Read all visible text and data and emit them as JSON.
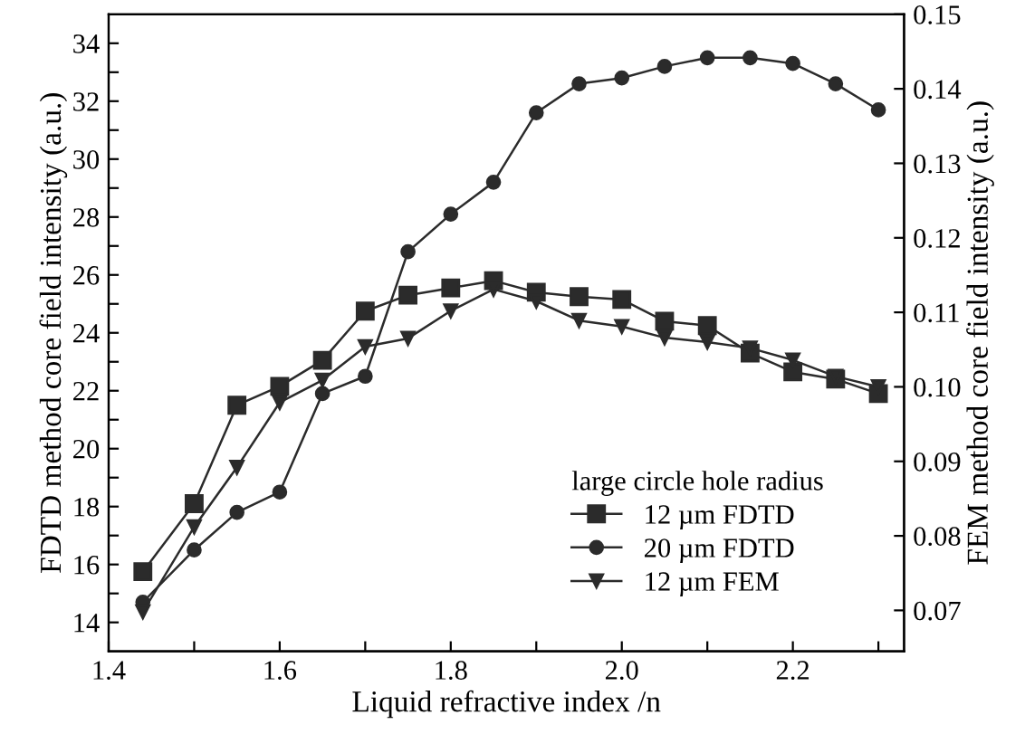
{
  "chart_data": {
    "type": "line",
    "xlabel": "Liquid refractive index /n",
    "ylabel": "FDTD method core field intensity (a.u.)",
    "y2label": "FEM method core field intensity (a.u.)",
    "legend_title": "large circle hole radius",
    "legend": "bottom right",
    "grid": false,
    "x": [
      1.44,
      1.5,
      1.55,
      1.6,
      1.65,
      1.7,
      1.75,
      1.8,
      1.85,
      1.9,
      1.95,
      2.0,
      2.05,
      2.1,
      2.15,
      2.2,
      2.25,
      2.3
    ],
    "xlim": [
      1.4,
      2.33
    ],
    "xticks": [
      1.4,
      {
        "value": 1.5,
        "label": null
      },
      1.6,
      {
        "value": 1.7,
        "label": null
      },
      1.8,
      {
        "value": 1.9,
        "label": null
      },
      {
        "value": 2.0,
        "label": "2.0"
      },
      {
        "value": 2.1,
        "label": null
      },
      2.2,
      {
        "value": 2.3,
        "label": null
      }
    ],
    "ylim": [
      13.0,
      35.0
    ],
    "yticks": [
      14,
      {
        "value": 15,
        "label": null
      },
      16,
      {
        "value": 17,
        "label": null
      },
      18,
      {
        "value": 19,
        "label": null
      },
      20,
      {
        "value": 21,
        "label": null
      },
      22,
      {
        "value": 23,
        "label": null
      },
      24,
      {
        "value": 25,
        "label": null
      },
      26,
      {
        "value": 27,
        "label": null
      },
      28,
      {
        "value": 29,
        "label": null
      },
      30,
      {
        "value": 31,
        "label": null
      },
      32,
      {
        "value": 33,
        "label": null
      },
      34
    ],
    "y2lim": [
      0.0645,
      0.15
    ],
    "y2ticks": [
      {
        "value": 0.07,
        "label": "0.07"
      },
      {
        "value": 0.08,
        "label": "0.08"
      },
      {
        "value": 0.09,
        "label": "0.09"
      },
      {
        "value": 0.1,
        "label": "0.10"
      },
      {
        "value": 0.11,
        "label": "0.11"
      },
      {
        "value": 0.12,
        "label": "0.12"
      },
      {
        "value": 0.13,
        "label": "0.13"
      },
      {
        "value": 0.14,
        "label": "0.14"
      },
      {
        "value": 0.15,
        "label": "0.15"
      }
    ],
    "series": [
      {
        "name": "12 µm FDTD",
        "color": "#2b2b2b",
        "marker": "square",
        "values": [
          15.75,
          18.1,
          21.5,
          22.15,
          23.05,
          24.75,
          25.3,
          25.55,
          25.8,
          25.4,
          25.25,
          25.15,
          24.4,
          24.25,
          23.3,
          22.65,
          22.4,
          21.9
        ]
      },
      {
        "name": "20 µm FDTD",
        "color": "#2b2b2b",
        "marker": "circle",
        "values": [
          14.7,
          16.5,
          17.8,
          18.5,
          21.9,
          22.5,
          26.8,
          28.1,
          29.2,
          31.6,
          32.6,
          32.8,
          33.2,
          33.5,
          33.5,
          33.3,
          32.6,
          31.7
        ]
      },
      {
        "name": "12 µm FEM",
        "color": "#2b2b2b",
        "marker": "triangle",
        "axis": "y2",
        "values": [
          0.0698,
          0.0812,
          0.0892,
          0.0979,
          0.1009,
          0.1054,
          0.1065,
          0.1102,
          0.1131,
          0.1115,
          0.1089,
          0.1081,
          0.1066,
          0.106,
          0.1052,
          0.1036,
          0.1014,
          0.1
        ]
      }
    ]
  }
}
